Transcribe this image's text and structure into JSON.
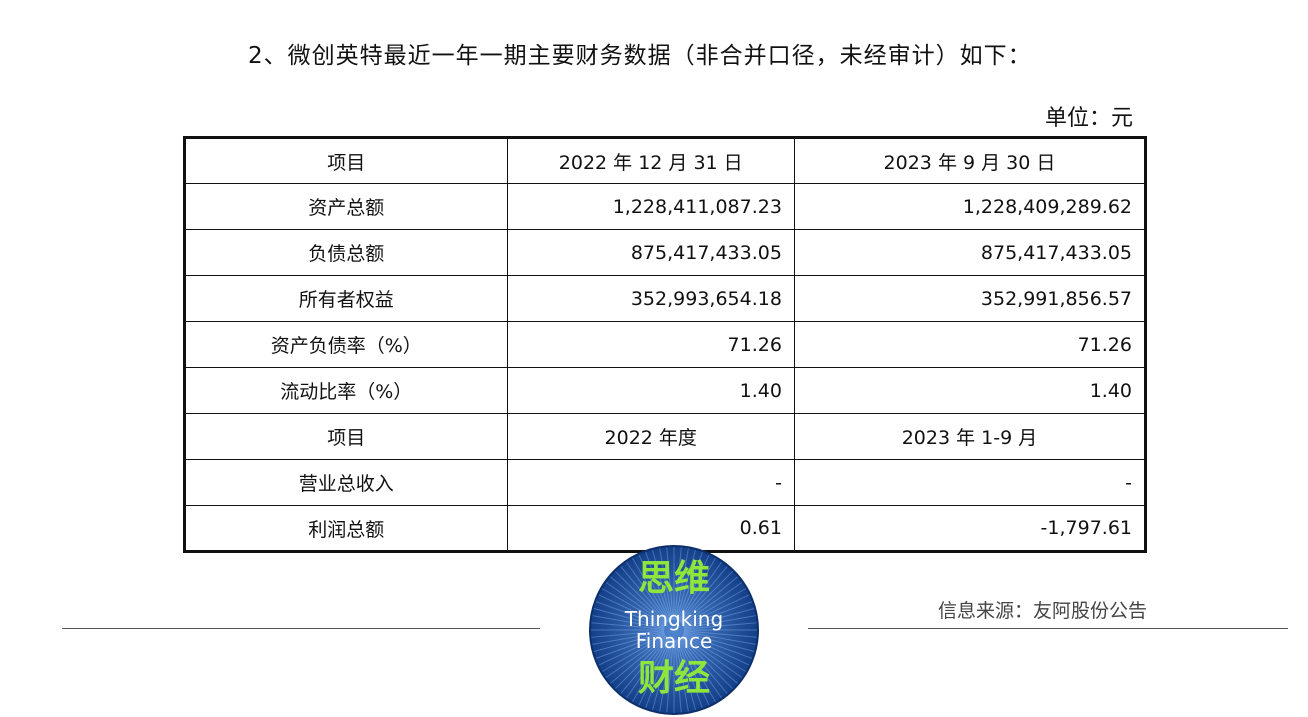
{
  "document": {
    "heading": "2、微创英特最近一年一期主要财务数据（非合并口径，未经审计）如下：",
    "unit": "单位：元"
  },
  "table": {
    "rows": [
      {
        "item": "项目",
        "col1": "2022 年 12 月 31 日",
        "col2": "2023 年 9 月 30 日"
      },
      {
        "item": "资产总额",
        "col1": "1,228,411,087.23",
        "col2": "1,228,409,289.62"
      },
      {
        "item": "负债总额",
        "col1": "875,417,433.05",
        "col2": "875,417,433.05"
      },
      {
        "item": "所有者权益",
        "col1": "352,993,654.18",
        "col2": "352,991,856.57"
      },
      {
        "item": "资产负债率（%）",
        "col1": "71.26",
        "col2": "71.26"
      },
      {
        "item": "流动比率（%）",
        "col1": "1.40",
        "col2": "1.40"
      },
      {
        "item": "项目",
        "col1": "2022 年度",
        "col2": "2023 年 1-9 月"
      },
      {
        "item": "营业总收入",
        "col1": "-",
        "col2": "-"
      },
      {
        "item": "利润总额",
        "col1": "0.61",
        "col2": "-1,797.61"
      }
    ]
  },
  "footer": {
    "source": "信息来源：友阿股份公告",
    "logo": {
      "line1": "思维",
      "line2": "Thingking",
      "line3": "Finance",
      "line4": "财经",
      "bg_color": "#1f4fa0",
      "text_color": "#8ee63c"
    }
  }
}
